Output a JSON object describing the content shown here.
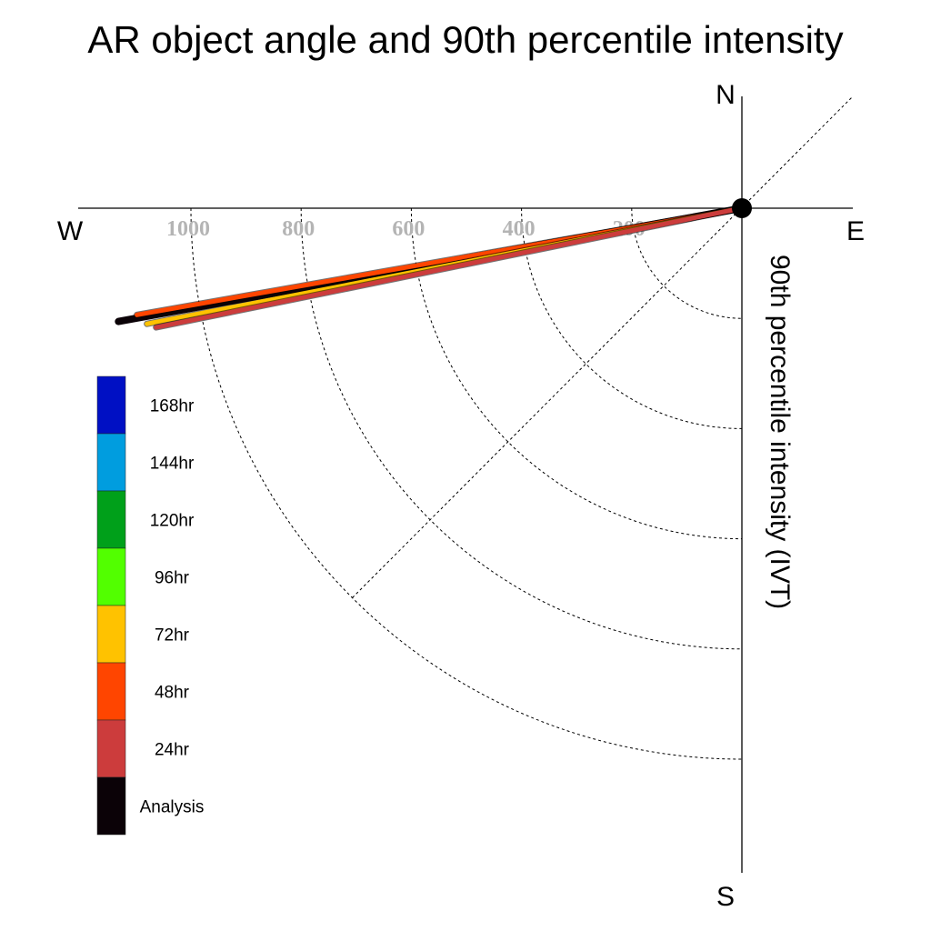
{
  "chart_data": {
    "type": "polar-line",
    "title": "AR object angle and 90th percentile intensity",
    "ylabel": "90th percentile intensity (IVT)",
    "compass": {
      "north": "N",
      "south": "S",
      "east": "E",
      "west": "W"
    },
    "radial_ticks": [
      "200",
      "400",
      "600",
      "800",
      "1000"
    ],
    "radial_tick_values": [
      200,
      400,
      600,
      800,
      1000
    ],
    "radial_max": 1150,
    "series": [
      {
        "name": "Analysis",
        "color": "#0b0207",
        "intensity": 1150,
        "angle_deg_from_west": 10.3
      },
      {
        "name": "48hr",
        "color": "#ff4500",
        "intensity": 1115,
        "angle_deg_from_west": 10.0
      },
      {
        "name": "72hr",
        "color": "#ffc200",
        "intensity": 1100,
        "angle_deg_from_west": 11.0
      },
      {
        "name": "24hr",
        "color": "#cc3c3c",
        "intensity": 1085,
        "angle_deg_from_west": 11.5
      }
    ],
    "legend": [
      {
        "label": "168hr",
        "color": "#0010c4"
      },
      {
        "label": "144hr",
        "color": "#009ddf"
      },
      {
        "label": "120hr",
        "color": "#00a01a"
      },
      {
        "label": "96hr",
        "color": "#52ff00"
      },
      {
        "label": "72hr",
        "color": "#ffc200"
      },
      {
        "label": "48hr",
        "color": "#ff4500"
      },
      {
        "label": "24hr",
        "color": "#cc3c3c"
      },
      {
        "label": "Analysis",
        "color": "#0b0207"
      }
    ]
  }
}
